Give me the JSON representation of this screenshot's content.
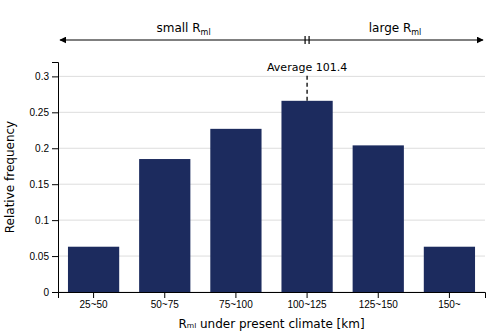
{
  "chart_data": {
    "type": "bar",
    "categories": [
      "25~50",
      "50~75",
      "75~100",
      "100~125",
      "125~150",
      "150~"
    ],
    "values": [
      0.063,
      0.185,
      0.227,
      0.266,
      0.204,
      0.063
    ],
    "color": "#1c2b5e",
    "xlabel": "Rₘₗ under present climate [km]",
    "ylabel": "Relative frequency",
    "ylim": [
      0,
      0.32
    ],
    "yticks": [
      0,
      0.05,
      0.1,
      0.15,
      0.2,
      0.25,
      0.3
    ],
    "grid": true,
    "average_line": {
      "category": "100~125",
      "values": [
        0.266,
        0.302
      ],
      "label": "Average 101.4"
    },
    "range_labels": [
      {
        "text": "small R",
        "subscript": "ml"
      },
      {
        "text": "large R",
        "subscript": "ml"
      }
    ]
  }
}
